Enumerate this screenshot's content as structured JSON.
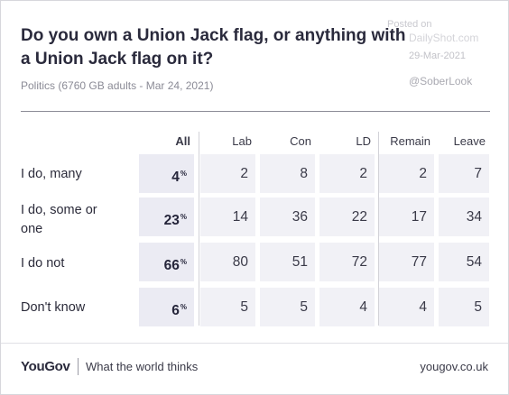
{
  "title": "Do you own a Union Jack flag, or anything with a Union Jack flag on it?",
  "subtitle": "Politics (6760 GB adults - Mar 24, 2021)",
  "watermark": {
    "posted_label": "Posted on",
    "site": "DailyShot.com",
    "date": "29-Mar-2021",
    "handle": "@SoberLook"
  },
  "table": {
    "columns": [
      "All",
      "Lab",
      "Con",
      "LD",
      "Remain",
      "Leave"
    ],
    "pct_suffix": "%",
    "rows": [
      {
        "label": "I do, many",
        "all": "4",
        "values": [
          "2",
          "8",
          "2",
          "2",
          "7"
        ]
      },
      {
        "label": "I do, some or one",
        "all": "23",
        "values": [
          "14",
          "36",
          "22",
          "17",
          "34"
        ]
      },
      {
        "label": "I do not",
        "all": "66",
        "values": [
          "80",
          "51",
          "72",
          "77",
          "54"
        ]
      },
      {
        "label": "Don't know",
        "all": "6",
        "values": [
          "5",
          "5",
          "4",
          "4",
          "5"
        ]
      }
    ]
  },
  "footer": {
    "logo": "YouGov",
    "tagline": "What the world thinks",
    "url": "yougov.co.uk"
  }
}
